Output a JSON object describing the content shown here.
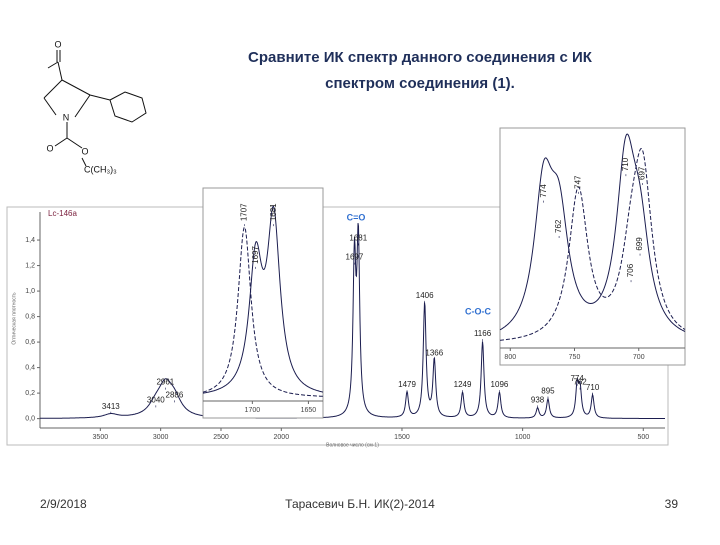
{
  "slide": {
    "title_lines": [
      "Сравните ИК спектр данного соединения с ИК",
      "спектром соединения (1)."
    ],
    "footer": {
      "date": "2/9/2018",
      "author": "Тарасевич Б.Н. ИК(2)-2014",
      "page": "39"
    }
  },
  "structure": {
    "labels": [
      "O",
      "N",
      "O",
      "O",
      "C(CH₃)₃"
    ]
  },
  "chart_data": [
    {
      "type": "spectrum",
      "title": "Lc-146a",
      "x_label": "Волновое число (см-1)",
      "y_label": "Оптическая плотность",
      "xlim": [
        4000,
        410
      ],
      "x_scale_break": 2000,
      "ylim": [
        -0.05,
        1.62
      ],
      "xticks": [
        3500,
        3000,
        2500,
        2000,
        1500,
        1000,
        500
      ],
      "yticks": [
        {
          "value": 0,
          "label": "0,0"
        },
        {
          "value": 0.2,
          "label": "0,2"
        },
        {
          "value": 0.4,
          "label": "0,4"
        },
        {
          "value": 0.6,
          "label": "0,6"
        },
        {
          "value": 0.8,
          "label": "0,8"
        },
        {
          "value": 1.0,
          "label": "1,0"
        },
        {
          "value": 1.2,
          "label": "1,2"
        },
        {
          "value": 1.4,
          "label": "1,4"
        }
      ],
      "annotations": [
        "C=O",
        "C-O-C"
      ],
      "series": [
        {
          "color": "#1b1d4f",
          "dash": false,
          "peaks": [
            3413,
            3040,
            2961,
            2886,
            1697,
            1681,
            1479,
            1406,
            1366,
            1249,
            1166,
            1096,
            938,
            895,
            774,
            762,
            710
          ],
          "values": [
            0.03,
            0.08,
            0.22,
            0.12,
            1.2,
            1.35,
            0.2,
            0.9,
            0.45,
            0.2,
            0.6,
            0.2,
            0.08,
            0.15,
            0.25,
            0.22,
            0.18
          ]
        }
      ]
    },
    {
      "type": "spectrum",
      "xlim": [
        1744,
        1637
      ],
      "ylim": [
        0,
        1.2
      ],
      "xticks": [
        1700,
        1650
      ],
      "series": [
        {
          "color": "#1b1d4f",
          "dash": false,
          "peaks": [
            1697,
            1681
          ],
          "values": [
            0.75,
            1.0
          ]
        },
        {
          "color": "#1b1d4f",
          "dash": true,
          "peaks": [
            1707
          ],
          "values": [
            1.0
          ]
        }
      ]
    },
    {
      "type": "spectrum",
      "xlim": [
        808,
        664
      ],
      "ylim": [
        0,
        1.2
      ],
      "xticks": [
        800,
        750,
        700
      ],
      "series": [
        {
          "color": "#1b1d4f",
          "dash": false,
          "peaks": [
            774,
            762,
            710,
            699
          ],
          "values": [
            0.8,
            0.6,
            0.95,
            0.5
          ]
        },
        {
          "color": "#1b1d4f",
          "dash": true,
          "peaks": [
            747,
            706,
            697
          ],
          "values": [
            0.85,
            0.35,
            0.9
          ]
        }
      ]
    }
  ]
}
